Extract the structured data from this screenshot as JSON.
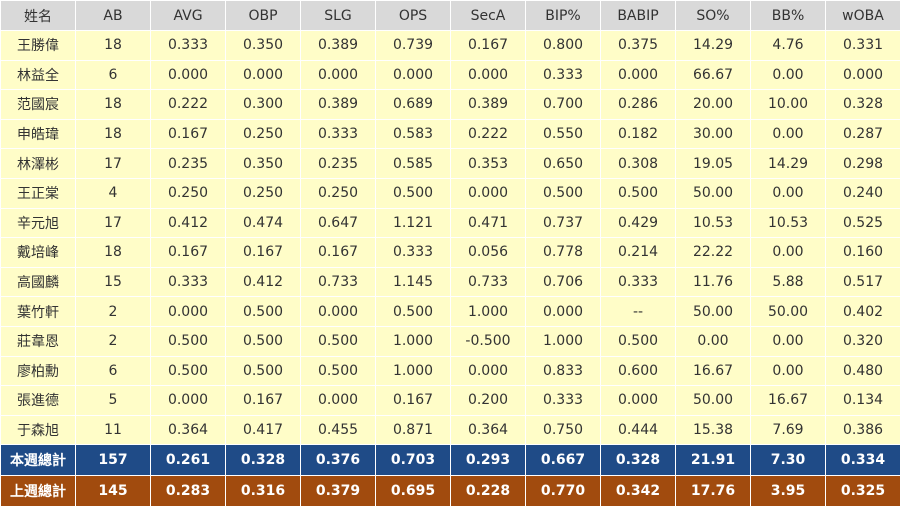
{
  "headers": [
    "姓名",
    "AB",
    "AVG",
    "OBP",
    "SLG",
    "OPS",
    "SecA",
    "BIP%",
    "BABIP",
    "SO%",
    "BB%",
    "wOBA"
  ],
  "rows": [
    [
      "王勝偉",
      "18",
      "0.333",
      "0.350",
      "0.389",
      "0.739",
      "0.167",
      "0.800",
      "0.375",
      "14.29",
      "4.76",
      "0.331"
    ],
    [
      "林益全",
      "6",
      "0.000",
      "0.000",
      "0.000",
      "0.000",
      "0.000",
      "0.333",
      "0.000",
      "66.67",
      "0.00",
      "0.000"
    ],
    [
      "范國宸",
      "18",
      "0.222",
      "0.300",
      "0.389",
      "0.689",
      "0.389",
      "0.700",
      "0.286",
      "20.00",
      "10.00",
      "0.328"
    ],
    [
      "申皓瑋",
      "18",
      "0.167",
      "0.250",
      "0.333",
      "0.583",
      "0.222",
      "0.550",
      "0.182",
      "30.00",
      "0.00",
      "0.287"
    ],
    [
      "林澤彬",
      "17",
      "0.235",
      "0.350",
      "0.235",
      "0.585",
      "0.353",
      "0.650",
      "0.308",
      "19.05",
      "14.29",
      "0.298"
    ],
    [
      "王正棠",
      "4",
      "0.250",
      "0.250",
      "0.250",
      "0.500",
      "0.000",
      "0.500",
      "0.500",
      "50.00",
      "0.00",
      "0.240"
    ],
    [
      "辛元旭",
      "17",
      "0.412",
      "0.474",
      "0.647",
      "1.121",
      "0.471",
      "0.737",
      "0.429",
      "10.53",
      "10.53",
      "0.525"
    ],
    [
      "戴培峰",
      "18",
      "0.167",
      "0.167",
      "0.167",
      "0.333",
      "0.056",
      "0.778",
      "0.214",
      "22.22",
      "0.00",
      "0.160"
    ],
    [
      "高國麟",
      "15",
      "0.333",
      "0.412",
      "0.733",
      "1.145",
      "0.733",
      "0.706",
      "0.333",
      "11.76",
      "5.88",
      "0.517"
    ],
    [
      "葉竹軒",
      "2",
      "0.000",
      "0.500",
      "0.000",
      "0.500",
      "1.000",
      "0.000",
      "--",
      "50.00",
      "50.00",
      "0.402"
    ],
    [
      "莊韋恩",
      "2",
      "0.500",
      "0.500",
      "0.500",
      "1.000",
      "-0.500",
      "1.000",
      "0.500",
      "0.00",
      "0.00",
      "0.320"
    ],
    [
      "廖柏勳",
      "6",
      "0.500",
      "0.500",
      "0.500",
      "1.000",
      "0.000",
      "0.833",
      "0.600",
      "16.67",
      "0.00",
      "0.480"
    ],
    [
      "張進德",
      "5",
      "0.000",
      "0.167",
      "0.000",
      "0.167",
      "0.200",
      "0.333",
      "0.000",
      "50.00",
      "16.67",
      "0.134"
    ],
    [
      "于森旭",
      "11",
      "0.364",
      "0.417",
      "0.455",
      "0.871",
      "0.364",
      "0.750",
      "0.444",
      "15.38",
      "7.69",
      "0.386"
    ]
  ],
  "totals": {
    "this_week": [
      "本週總計",
      "157",
      "0.261",
      "0.328",
      "0.376",
      "0.703",
      "0.293",
      "0.667",
      "0.328",
      "21.91",
      "7.30",
      "0.334"
    ],
    "last_week": [
      "上週總計",
      "145",
      "0.283",
      "0.316",
      "0.379",
      "0.695",
      "0.228",
      "0.770",
      "0.342",
      "17.76",
      "3.95",
      "0.325"
    ]
  },
  "colors": {
    "header_bg": "#d9d9d9",
    "row_bg": "#fffdc8",
    "this_week_bg": "#1f4b87",
    "last_week_bg": "#a14b0e",
    "total_text": "#ffffff"
  }
}
